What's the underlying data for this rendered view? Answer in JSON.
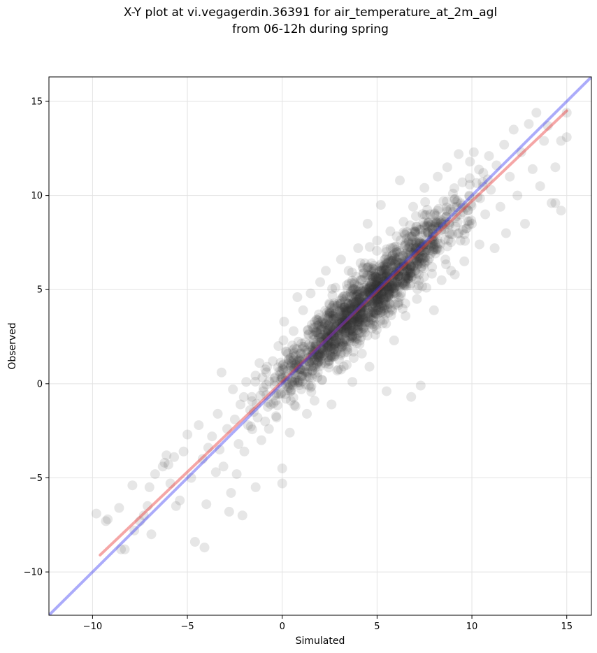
{
  "title_line1": "X-Y plot at vi.vegagerdin.36391 for air_temperature_at_2m_agl",
  "title_line2": "from 06-12h during spring",
  "chart_data": {
    "type": "scatter",
    "title": "X-Y plot at vi.vegagerdin.36391 for air_temperature_at_2m_agl\nfrom 06-12h during spring",
    "xlabel": "Simulated",
    "ylabel": "Observed",
    "xlim": [
      -12.3,
      16.3
    ],
    "ylim": [
      -12.3,
      16.3
    ],
    "xticks": [
      -10,
      -5,
      0,
      5,
      10,
      15
    ],
    "yticks": [
      -10,
      -5,
      0,
      5,
      10,
      15
    ],
    "xtick_labels": [
      "−10",
      "−5",
      "0",
      "5",
      "10",
      "15"
    ],
    "ytick_labels": [
      "−10",
      "−5",
      "0",
      "5",
      "10",
      "15"
    ],
    "grid": true,
    "point_color": "#333333",
    "point_opacity": 0.12,
    "series": [
      {
        "type": "scatter",
        "points": [
          [
            -9.8,
            -6.9
          ],
          [
            -9.3,
            -7.3
          ],
          [
            -9.2,
            -7.2
          ],
          [
            -8.6,
            -6.6
          ],
          [
            -8.5,
            -8.8
          ],
          [
            -8.3,
            -8.8
          ],
          [
            -7.9,
            -5.4
          ],
          [
            -7.8,
            -7.8
          ],
          [
            -7.5,
            -7.3
          ],
          [
            -7.3,
            -7.0
          ],
          [
            -7.1,
            -6.5
          ],
          [
            -7.0,
            -5.5
          ],
          [
            -6.9,
            -8.0
          ],
          [
            -6.7,
            -4.8
          ],
          [
            -6.3,
            -4.4
          ],
          [
            -6.2,
            -4.2
          ],
          [
            -6.1,
            -3.8
          ],
          [
            -6.0,
            -4.3
          ],
          [
            -5.9,
            -5.3
          ],
          [
            -5.7,
            -3.9
          ],
          [
            -5.6,
            -6.5
          ],
          [
            -5.4,
            -6.2
          ],
          [
            -5.2,
            -3.6
          ],
          [
            -5.0,
            -2.7
          ],
          [
            -4.8,
            -5.0
          ],
          [
            -4.6,
            -8.4
          ],
          [
            -4.4,
            -2.2
          ],
          [
            -4.2,
            -4.0
          ],
          [
            -4.1,
            -8.7
          ],
          [
            -4.0,
            -6.4
          ],
          [
            -3.9,
            -3.4
          ],
          [
            -3.7,
            -2.8
          ],
          [
            -3.5,
            -4.7
          ],
          [
            -3.4,
            -1.6
          ],
          [
            -3.3,
            -3.5
          ],
          [
            -3.2,
            0.6
          ],
          [
            -3.1,
            -4.4
          ],
          [
            -2.9,
            -2.4
          ],
          [
            -2.8,
            -6.8
          ],
          [
            -2.7,
            -5.8
          ],
          [
            -2.6,
            -0.3
          ],
          [
            -2.5,
            -1.9
          ],
          [
            -2.4,
            -4.8
          ],
          [
            -2.3,
            -3.2
          ],
          [
            -2.2,
            -1.1
          ],
          [
            -2.1,
            -7.0
          ],
          [
            -2.0,
            -3.6
          ],
          [
            -1.9,
            0.1
          ],
          [
            -1.8,
            -2.2
          ],
          [
            -1.6,
            -0.7
          ],
          [
            -1.5,
            -1.5
          ],
          [
            -1.4,
            -5.5
          ],
          [
            -1.3,
            -1.8
          ],
          [
            -1.2,
            1.1
          ],
          [
            -1.1,
            -3.0
          ],
          [
            -1.0,
            -0.4
          ],
          [
            -0.9,
            -2.0
          ],
          [
            -0.8,
            0.9
          ],
          [
            -0.7,
            -2.4
          ],
          [
            -0.6,
            -1.1
          ],
          [
            -0.5,
            1.2
          ],
          [
            -0.4,
            -0.1
          ],
          [
            -0.3,
            -1.8
          ],
          [
            -0.2,
            2.0
          ],
          [
            -0.1,
            0.5
          ],
          [
            0.0,
            -4.5
          ],
          [
            0.0,
            -5.3
          ],
          [
            0.1,
            3.3
          ],
          [
            0.2,
            -0.8
          ],
          [
            0.3,
            1.6
          ],
          [
            0.4,
            -2.6
          ],
          [
            0.5,
            0.3
          ],
          [
            0.6,
            2.8
          ],
          [
            0.7,
            -1.2
          ],
          [
            0.8,
            4.6
          ],
          [
            0.9,
            1.3
          ],
          [
            1.0,
            -0.3
          ],
          [
            1.1,
            3.9
          ],
          [
            1.2,
            2.2
          ],
          [
            1.3,
            -1.6
          ],
          [
            1.4,
            0.9
          ],
          [
            1.5,
            4.8
          ],
          [
            1.6,
            2.6
          ],
          [
            1.7,
            -0.9
          ],
          [
            1.8,
            3.4
          ],
          [
            1.9,
            1.4
          ],
          [
            2.0,
            5.4
          ],
          [
            2.1,
            0.2
          ],
          [
            2.2,
            3.0
          ],
          [
            2.3,
            6.0
          ],
          [
            2.4,
            1.9
          ],
          [
            2.5,
            4.2
          ],
          [
            2.6,
            -1.1
          ],
          [
            2.7,
            2.6
          ],
          [
            2.8,
            5.1
          ],
          [
            2.9,
            0.7
          ],
          [
            3.0,
            3.6
          ],
          [
            3.1,
            6.6
          ],
          [
            3.2,
            2.1
          ],
          [
            3.3,
            4.5
          ],
          [
            3.4,
            1.0
          ],
          [
            3.5,
            6.0
          ],
          [
            3.6,
            3.1
          ],
          [
            3.7,
            0.1
          ],
          [
            3.8,
            5.3
          ],
          [
            3.9,
            2.5
          ],
          [
            4.0,
            7.2
          ],
          [
            4.1,
            4.0
          ],
          [
            4.2,
            1.6
          ],
          [
            4.3,
            5.9
          ],
          [
            4.4,
            3.5
          ],
          [
            4.5,
            8.5
          ],
          [
            4.6,
            0.9
          ],
          [
            4.7,
            6.4
          ],
          [
            4.8,
            4.6
          ],
          [
            4.9,
            2.6
          ],
          [
            5.0,
            7.6
          ],
          [
            5.1,
            5.2
          ],
          [
            5.2,
            9.5
          ],
          [
            5.3,
            3.2
          ],
          [
            5.4,
            6.6
          ],
          [
            5.5,
            -0.4
          ],
          [
            5.6,
            4.8
          ],
          [
            5.7,
            8.1
          ],
          [
            5.8,
            5.9
          ],
          [
            5.9,
            2.3
          ],
          [
            6.0,
            7.3
          ],
          [
            6.1,
            4.3
          ],
          [
            6.2,
            10.8
          ],
          [
            6.3,
            6.4
          ],
          [
            6.4,
            8.6
          ],
          [
            6.5,
            3.6
          ],
          [
            6.6,
            5.7
          ],
          [
            6.7,
            7.8
          ],
          [
            6.8,
            -0.7
          ],
          [
            6.9,
            9.4
          ],
          [
            7.0,
            6.0
          ],
          [
            7.1,
            4.5
          ],
          [
            7.2,
            8.2
          ],
          [
            7.3,
            -0.1
          ],
          [
            7.4,
            6.8
          ],
          [
            7.5,
            10.4
          ],
          [
            7.6,
            5.1
          ],
          [
            7.7,
            7.4
          ],
          [
            7.8,
            9.0
          ],
          [
            7.9,
            6.2
          ],
          [
            8.0,
            3.9
          ],
          [
            8.1,
            8.5
          ],
          [
            8.2,
            11.0
          ],
          [
            8.3,
            7.1
          ],
          [
            8.4,
            5.5
          ],
          [
            8.5,
            9.7
          ],
          [
            8.6,
            6.6
          ],
          [
            8.7,
            11.5
          ],
          [
            8.8,
            8.0
          ],
          [
            8.9,
            6.0
          ],
          [
            9.0,
            10.1
          ],
          [
            9.1,
            5.8
          ],
          [
            9.2,
            8.9
          ],
          [
            9.3,
            12.2
          ],
          [
            9.4,
            7.6
          ],
          [
            9.5,
            10.7
          ],
          [
            9.6,
            6.5
          ],
          [
            9.8,
            9.2
          ],
          [
            9.9,
            11.8
          ],
          [
            10.0,
            8.5
          ],
          [
            10.1,
            12.3
          ],
          [
            10.3,
            9.9
          ],
          [
            10.4,
            7.4
          ],
          [
            10.6,
            11.2
          ],
          [
            10.7,
            9.0
          ],
          [
            10.9,
            12.1
          ],
          [
            11.0,
            10.3
          ],
          [
            11.2,
            7.2
          ],
          [
            11.3,
            11.6
          ],
          [
            11.5,
            9.4
          ],
          [
            11.7,
            12.7
          ],
          [
            11.8,
            8.0
          ],
          [
            12.0,
            11.0
          ],
          [
            12.2,
            13.5
          ],
          [
            12.4,
            10.0
          ],
          [
            12.6,
            12.3
          ],
          [
            12.8,
            8.5
          ],
          [
            13.0,
            13.8
          ],
          [
            13.2,
            11.4
          ],
          [
            13.4,
            14.4
          ],
          [
            13.6,
            10.5
          ],
          [
            13.8,
            12.9
          ],
          [
            14.0,
            13.7
          ],
          [
            14.2,
            9.6
          ],
          [
            14.4,
            11.5
          ],
          [
            14.7,
            12.9
          ],
          [
            15.0,
            14.4
          ],
          [
            15.0,
            13.1
          ],
          [
            14.7,
            9.2
          ],
          [
            14.4,
            9.6
          ]
        ]
      },
      {
        "type": "line",
        "color": "#e83a3a",
        "opacity": 0.45,
        "x": [
          -9.6,
          15.0
        ],
        "y": [
          -9.1,
          14.5
        ]
      },
      {
        "type": "line",
        "color": "#2d2df2",
        "opacity": 0.4,
        "x": [
          -12.3,
          16.3
        ],
        "y": [
          -12.3,
          16.3
        ]
      }
    ]
  }
}
